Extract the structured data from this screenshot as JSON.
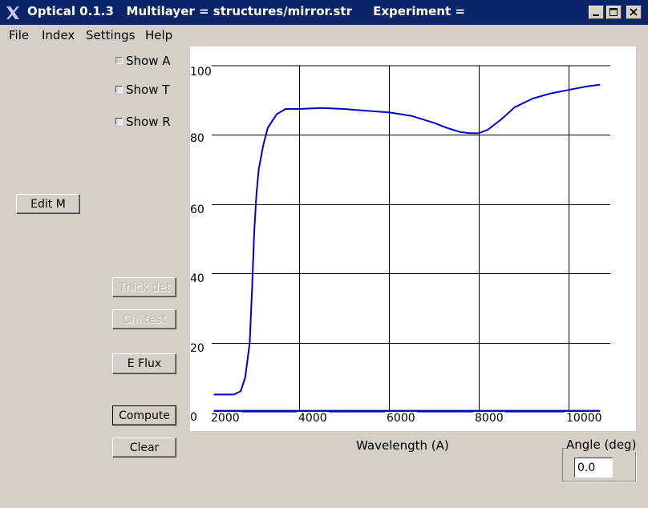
{
  "window": {
    "title": "Optical 0.1.3   Multilayer = structures/mirror.str     Experiment =",
    "icon": "x-logo-icon"
  },
  "menu": {
    "items": [
      "File",
      "Index",
      "Settings",
      "Help"
    ]
  },
  "checkboxes": {
    "show_a": {
      "label": "Show A",
      "checked": false
    },
    "show_t": {
      "label": "Show T",
      "checked": true
    },
    "show_r": {
      "label": "Show R",
      "checked": true
    }
  },
  "buttons": {
    "edit_m": "Edit M",
    "thick_det": "Thick det",
    "chi_test": "Chi test",
    "e_flux": "E Flux",
    "compute": "Compute",
    "clear": "Clear"
  },
  "angle": {
    "label": "Angle (deg)",
    "value": "0.0"
  },
  "chart_data": {
    "type": "line",
    "title": "",
    "xlabel": "Wavelength (A)",
    "ylabel": "",
    "xlim": [
      2000,
      10700
    ],
    "ylim": [
      0,
      100
    ],
    "x_ticks": [
      "2000",
      "4000",
      "6000",
      "8000",
      "10000"
    ],
    "y_ticks": [
      "0",
      "20",
      "40",
      "60",
      "80",
      "100"
    ],
    "grid": true,
    "series": [
      {
        "color": "#0000cc",
        "x": [
          2100,
          2300,
          2550,
          2700,
          2800,
          2900,
          2950,
          3000,
          3050,
          3100,
          3200,
          3300,
          3400,
          3500,
          3700,
          4000,
          4500,
          5000,
          5500,
          6000,
          6500,
          7000,
          7300,
          7600,
          7800,
          8000,
          8200,
          8500,
          8800,
          9200,
          9600,
          10000,
          10400,
          10700
        ],
        "y": [
          5,
          5,
          5,
          6,
          10,
          20,
          35,
          52,
          63,
          70,
          77,
          82,
          84,
          86,
          87.5,
          87.5,
          87.8,
          87.5,
          87,
          86.5,
          85.5,
          83.5,
          82,
          80.8,
          80.5,
          80.5,
          81.5,
          84.5,
          88,
          90.5,
          92,
          93,
          94,
          94.5
        ]
      },
      {
        "color": "#0000cc",
        "x": [
          2100,
          10700
        ],
        "y": [
          0.2,
          0.2
        ]
      }
    ]
  }
}
